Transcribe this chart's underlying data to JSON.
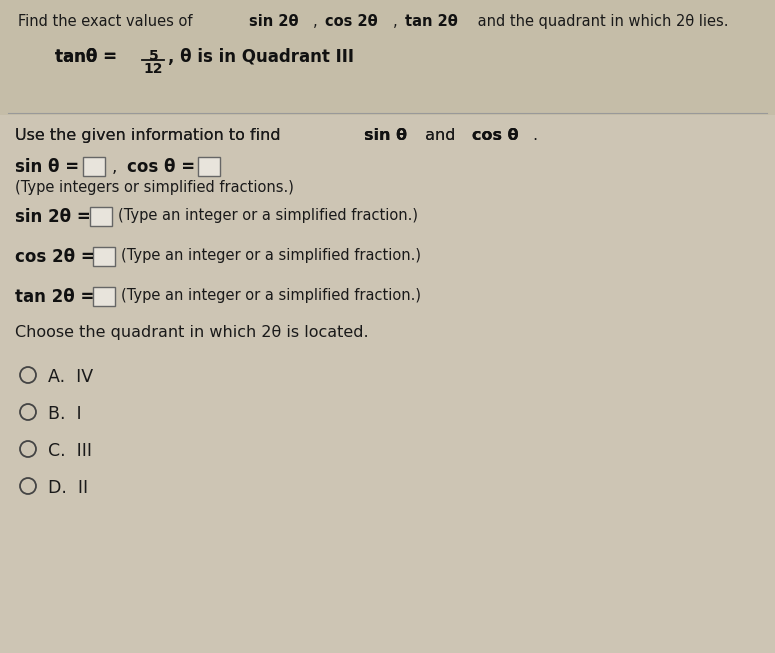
{
  "bg_color": "#cdc5b4",
  "header_bg": "#c5bda8",
  "text_color": "#1a1a1a",
  "bold_color": "#111111",
  "box_color": "#e8e4dc",
  "box_border": "#666666",
  "circle_color": "#444444",
  "line_color": "#999999",
  "title_normal": "Find the exact values of ",
  "title_bold1": "sin 2θ",
  "title_sep1": ", ",
  "title_bold2": "cos 2θ",
  "title_sep2": ", ",
  "title_bold3": "tan 2θ",
  "title_end": " and the quadrant in which 2θ lies.",
  "given_tan": "tanθ = ",
  "frac_num": "5",
  "frac_den": "12",
  "given_rest": ", θ is in Quadrant III",
  "instruction_pre": "Use the given information to find ",
  "instruction_bold1": "sin θ",
  "instruction_mid": " and ",
  "instruction_bold2": "cos θ",
  "instruction_end": ".",
  "sin_label": "sin θ =",
  "cos_label": "cos θ =",
  "type_note1": "(Type integers or simplified fractions.)",
  "sin2_label": "sin 2θ =",
  "sin2_note": "(Type an integer or a simplified fraction.)",
  "cos2_label": "cos 2θ =",
  "cos2_note": "(Type an integer or a simplified fraction.)",
  "tan2_label": "tan 2θ =",
  "tan2_note": "(Type an integer or a simplified fraction.)",
  "choose_label": "Choose the quadrant in which 2θ is located.",
  "options": [
    "A.  IV",
    "B.  I",
    "C.  III",
    "D.  II"
  ]
}
